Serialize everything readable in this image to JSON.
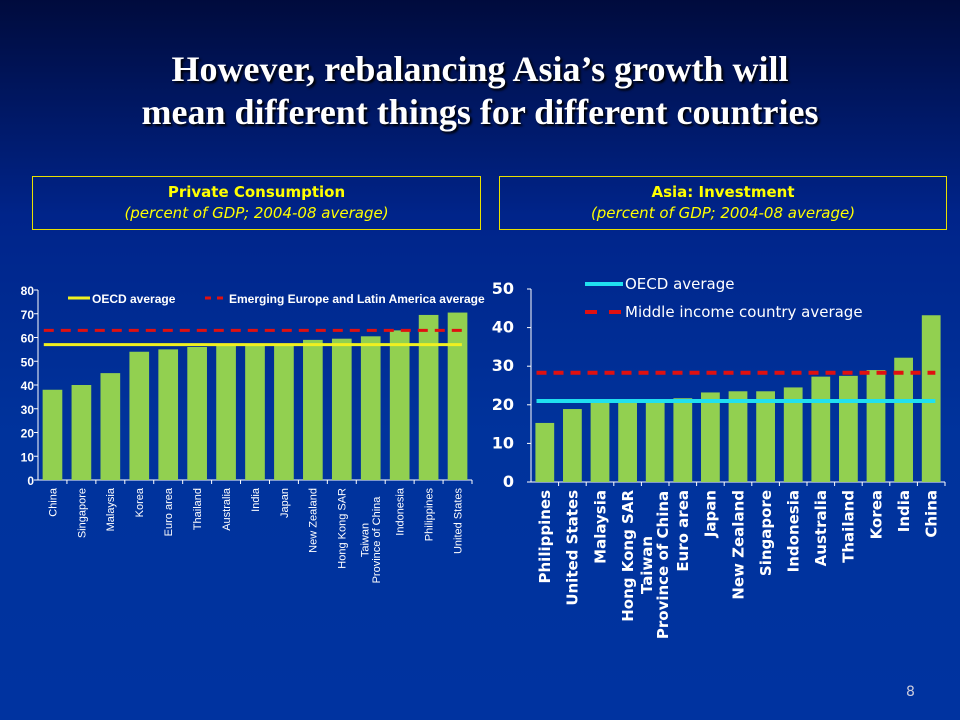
{
  "title": [
    "However, rebalancing Asia’s growth will",
    "mean different things for different countries"
  ],
  "page_number": "8",
  "chart_data": [
    {
      "type": "bar",
      "title": "Private Consumption",
      "subtitle": "(percent of GDP; 2004-08 average)",
      "categories": [
        "China",
        "Singapore",
        "Malaysia",
        "Korea",
        "Euro area",
        "Thailand",
        "Australia",
        "India",
        "Japan",
        "New Zealand",
        "Hong Kong SAR",
        "Taiwan\nProvince of China",
        "Indonesia",
        "Philippines",
        "United States"
      ],
      "values": [
        38,
        40,
        45,
        54,
        55,
        56,
        57,
        57,
        57,
        59,
        59.5,
        60.5,
        63,
        69.5,
        70.5
      ],
      "ylim": [
        0,
        80
      ],
      "yticks": [
        0,
        10,
        20,
        30,
        40,
        50,
        60,
        70,
        80
      ],
      "reference_lines": [
        {
          "name": "OECD average",
          "value": 57,
          "color": "#f0f020",
          "style": "solid"
        },
        {
          "name": "Emerging Europe and Latin America average",
          "value": 63,
          "color": "#e01010",
          "style": "dashed"
        }
      ],
      "bar_color": "#92d050",
      "legend": "top"
    },
    {
      "type": "bar",
      "title": "Asia: Investment",
      "subtitle": "(percent of GDP; 2004-08 average)",
      "categories": [
        "Philippines",
        "United States",
        "Malaysia",
        "Hong Kong SAR",
        "Taiwan\nProvince of China",
        "Euro area",
        "Japan",
        "New Zealand",
        "Singapore",
        "Indonesia",
        "Australia",
        "Thailand",
        "Korea",
        "India",
        "China"
      ],
      "values": [
        15.3,
        18.9,
        21,
        21,
        21,
        21.7,
        23.2,
        23.5,
        23.5,
        24.5,
        27.3,
        27.5,
        29,
        32.2,
        43.2
      ],
      "ylim": [
        0,
        50
      ],
      "yticks": [
        0,
        10,
        20,
        30,
        40,
        50
      ],
      "reference_lines": [
        {
          "name": "OECD average",
          "value": 21,
          "color": "#20e0f0",
          "style": "solid"
        },
        {
          "name": "Middle income country average",
          "value": 28.3,
          "color": "#e01010",
          "style": "dashed"
        }
      ],
      "bar_color": "#92d050",
      "legend": "top-left"
    }
  ]
}
